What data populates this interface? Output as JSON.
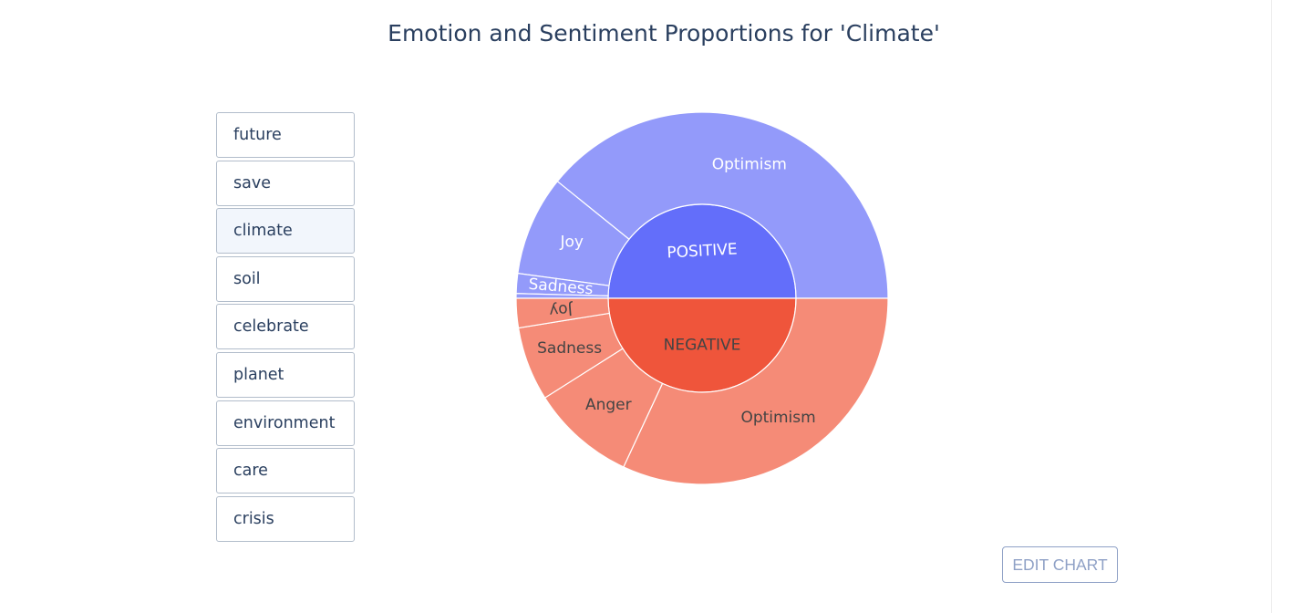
{
  "title": "Emotion and Sentiment Proportions for 'Climate'",
  "words": [
    {
      "label": "future",
      "selected": false
    },
    {
      "label": "save",
      "selected": false
    },
    {
      "label": "climate",
      "selected": true
    },
    {
      "label": "soil",
      "selected": false
    },
    {
      "label": "celebrate",
      "selected": false
    },
    {
      "label": "planet",
      "selected": false
    },
    {
      "label": "environment",
      "selected": false
    },
    {
      "label": "care",
      "selected": false
    },
    {
      "label": "crisis",
      "selected": false
    }
  ],
  "edit_button": {
    "label": "EDIT CHART"
  },
  "chart_data": {
    "type": "sunburst",
    "title": "Emotion and Sentiment Proportions for 'Climate'",
    "groups": [
      {
        "name": "POSITIVE",
        "color": "#636efa",
        "child_color": "#939afa",
        "label_color": "#ffffff",
        "children": [
          {
            "name": "Optimism",
            "value": 38.4
          },
          {
            "name": "Joy",
            "value": 8.5
          },
          {
            "name": "Sadness",
            "value": 1.7
          },
          {
            "name": "",
            "value": 0.4
          }
        ]
      },
      {
        "name": "NEGATIVE",
        "color": "#ef553b",
        "child_color": "#f58b77",
        "label_color": "#444444",
        "children": [
          {
            "name": "Optimism",
            "value": 31.3
          },
          {
            "name": "Anger",
            "value": 8.9
          },
          {
            "name": "Sadness",
            "value": 6.3
          },
          {
            "name": "Joy",
            "value": 2.5
          }
        ]
      }
    ]
  }
}
